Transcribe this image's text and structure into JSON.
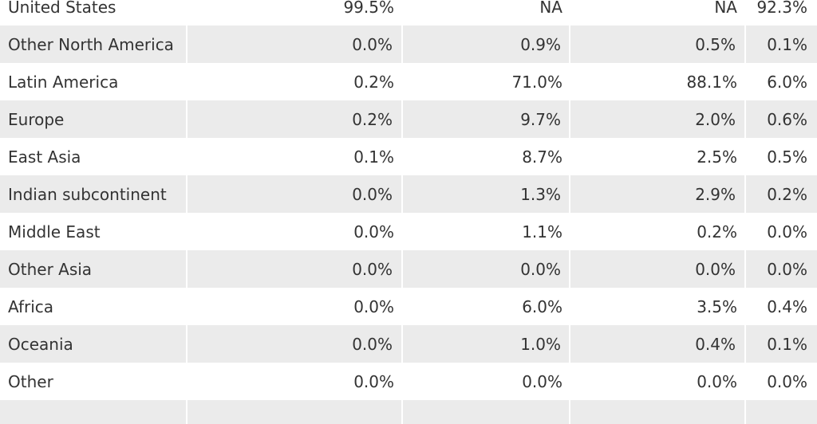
{
  "table": {
    "rows": [
      {
        "region": "United States",
        "c1": "99.5%",
        "c2": "NA",
        "c3": "NA",
        "c4": "92.3%"
      },
      {
        "region": "Other North America",
        "c1": "0.0%",
        "c2": "0.9%",
        "c3": "0.5%",
        "c4": "0.1%"
      },
      {
        "region": "Latin America",
        "c1": "0.2%",
        "c2": "71.0%",
        "c3": "88.1%",
        "c4": "6.0%"
      },
      {
        "region": "Europe",
        "c1": "0.2%",
        "c2": "9.7%",
        "c3": "2.0%",
        "c4": "0.6%"
      },
      {
        "region": "East Asia",
        "c1": "0.1%",
        "c2": "8.7%",
        "c3": "2.5%",
        "c4": "0.5%"
      },
      {
        "region": "Indian subcontinent",
        "c1": "0.0%",
        "c2": "1.3%",
        "c3": "2.9%",
        "c4": "0.2%"
      },
      {
        "region": "Middle East",
        "c1": "0.0%",
        "c2": "1.1%",
        "c3": "0.2%",
        "c4": "0.0%"
      },
      {
        "region": "Other Asia",
        "c1": "0.0%",
        "c2": "0.0%",
        "c3": "0.0%",
        "c4": "0.0%"
      },
      {
        "region": "Africa",
        "c1": "0.0%",
        "c2": "6.0%",
        "c3": "3.5%",
        "c4": "0.4%"
      },
      {
        "region": "Oceania",
        "c1": "0.0%",
        "c2": "1.0%",
        "c3": "0.4%",
        "c4": "0.1%"
      },
      {
        "region": "Other",
        "c1": "0.0%",
        "c2": "0.0%",
        "c3": "0.0%",
        "c4": "0.0%"
      }
    ]
  },
  "colors": {
    "text": "#333333",
    "row_shade": "#ebebeb",
    "background": "#ffffff"
  }
}
